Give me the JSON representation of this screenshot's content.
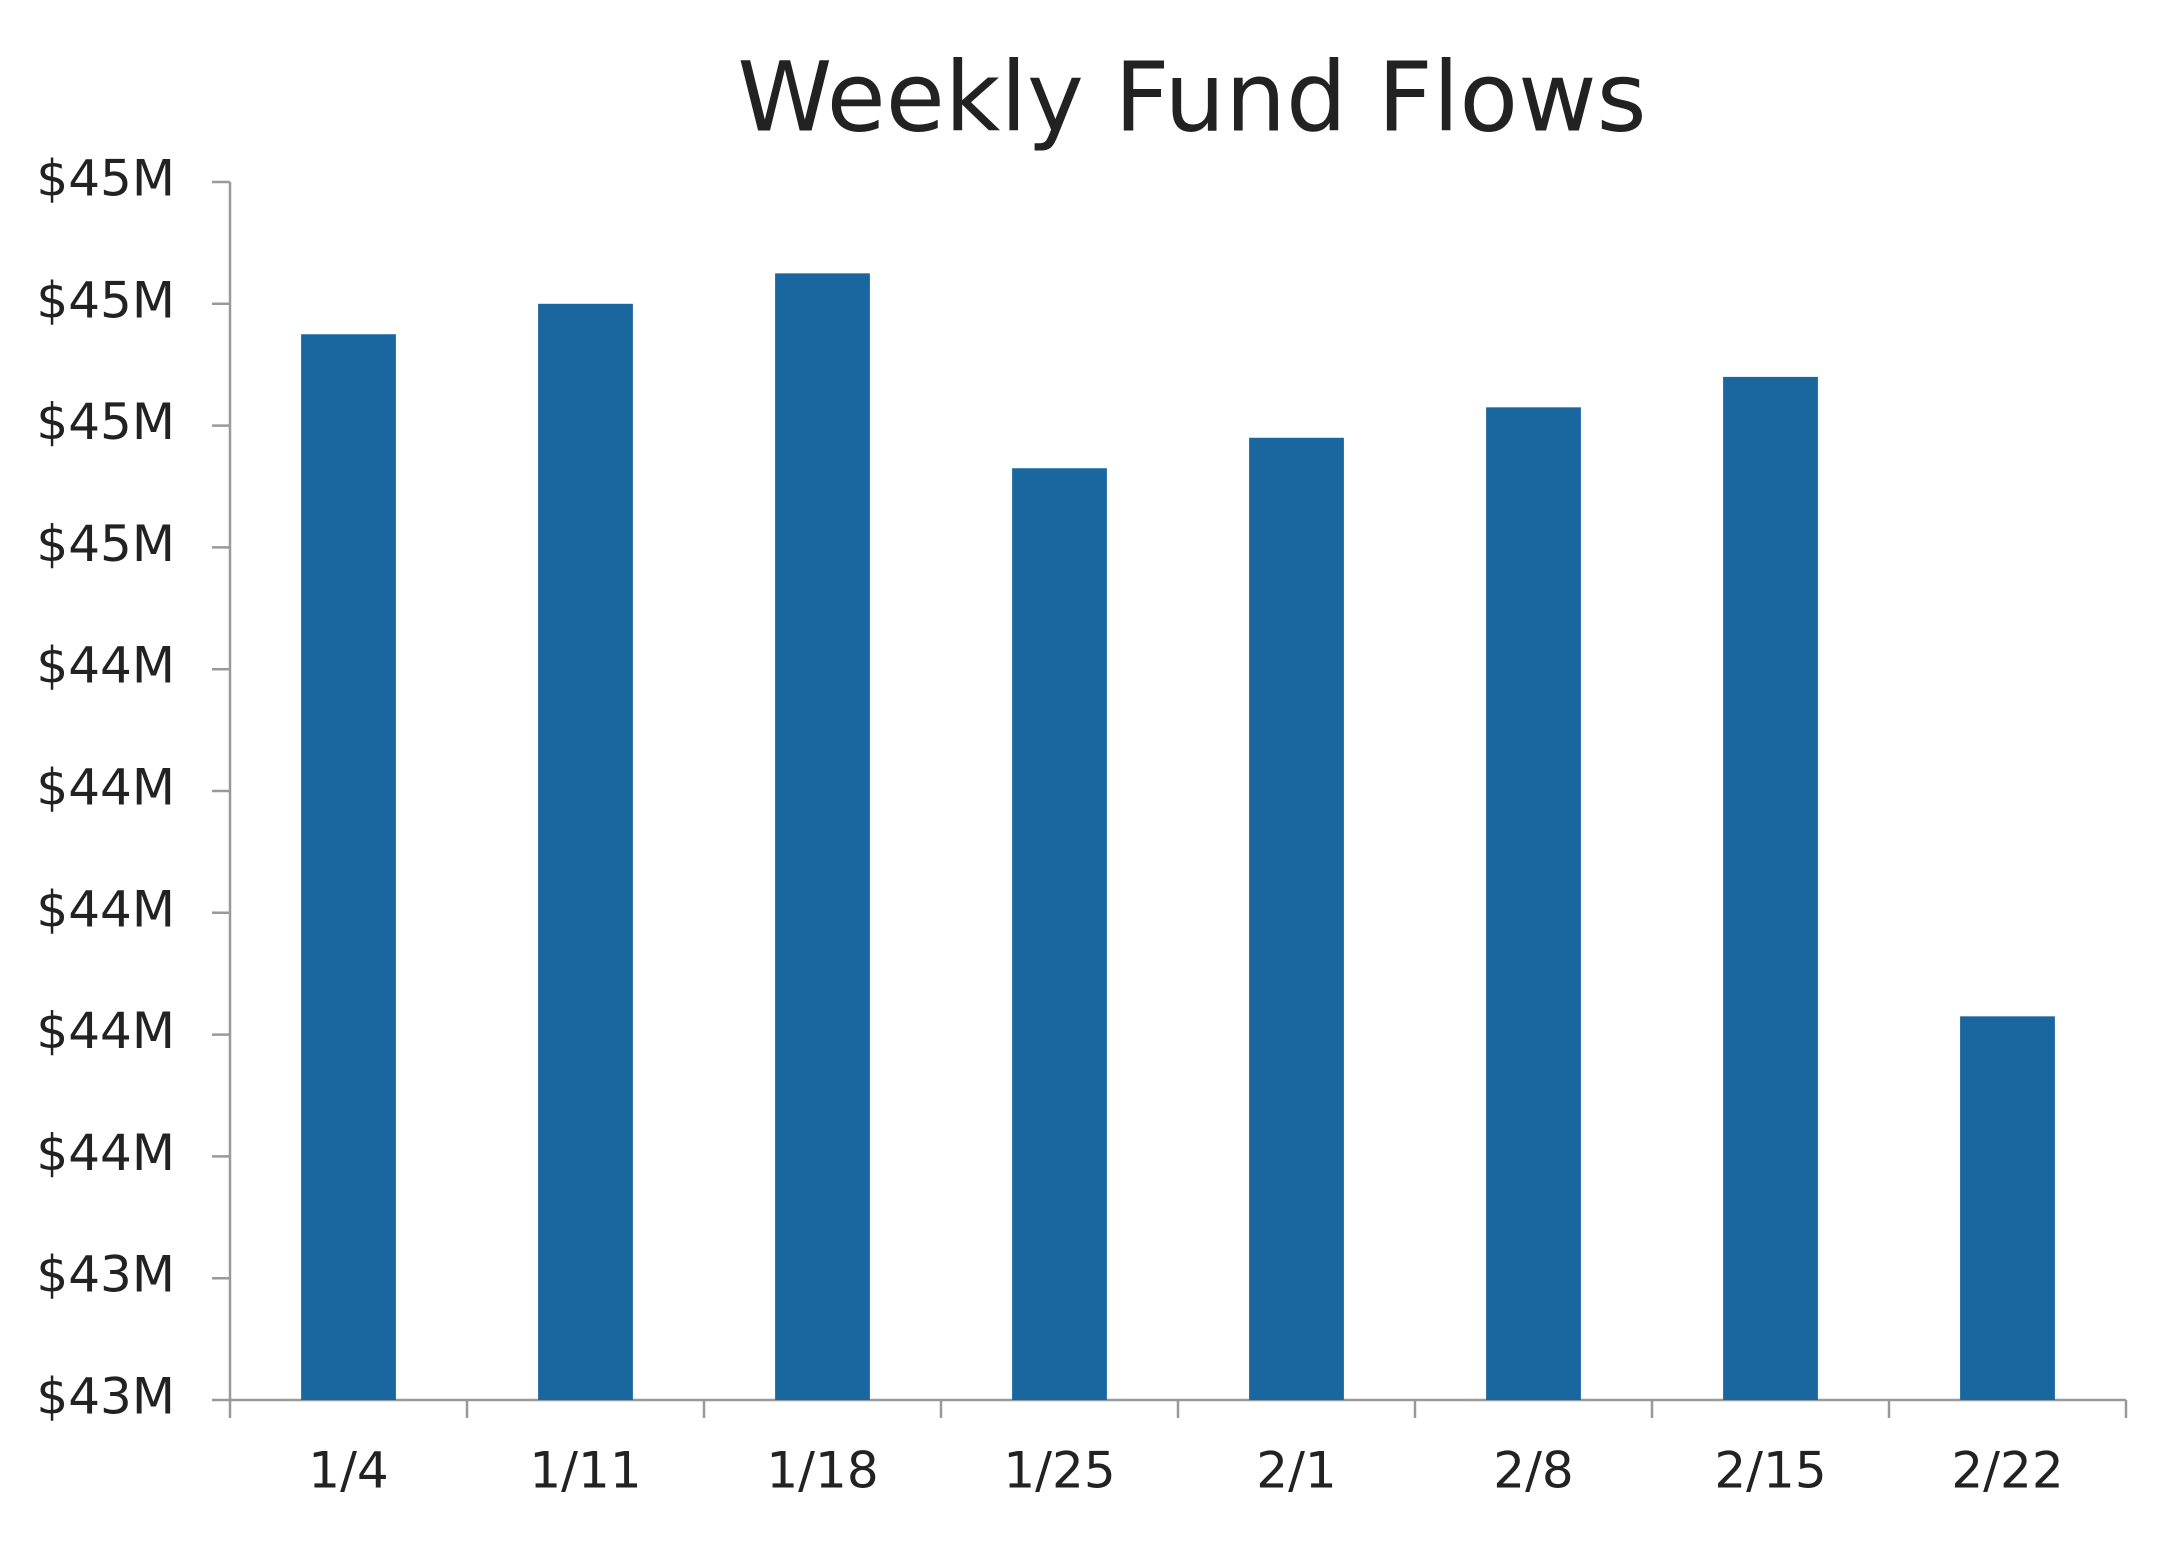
{
  "chart_data": {
    "type": "bar",
    "title": "Weekly Fund Flows",
    "categories": [
      "1/4",
      "1/11",
      "1/18",
      "1/25",
      "2/1",
      "2/8",
      "2/15",
      "2/22"
    ],
    "values": [
      44850000,
      44900000,
      44950000,
      44630000,
      44680000,
      44730000,
      44780000,
      43730000
    ],
    "color": "#1a67a0",
    "ylim": [
      43100000,
      45100000
    ],
    "yticks": [
      {
        "value": 43100000,
        "label": "$43M"
      },
      {
        "value": 43300000,
        "label": "$43M"
      },
      {
        "value": 43500000,
        "label": "$44M"
      },
      {
        "value": 43700000,
        "label": "$44M"
      },
      {
        "value": 43900000,
        "label": "$44M"
      },
      {
        "value": 44100000,
        "label": "$44M"
      },
      {
        "value": 44300000,
        "label": "$44M"
      },
      {
        "value": 44500000,
        "label": "$45M"
      },
      {
        "value": 44700000,
        "label": "$45M"
      },
      {
        "value": 44900000,
        "label": "$45M"
      },
      {
        "value": 45100000,
        "label": "$45M"
      }
    ],
    "grid": false
  }
}
